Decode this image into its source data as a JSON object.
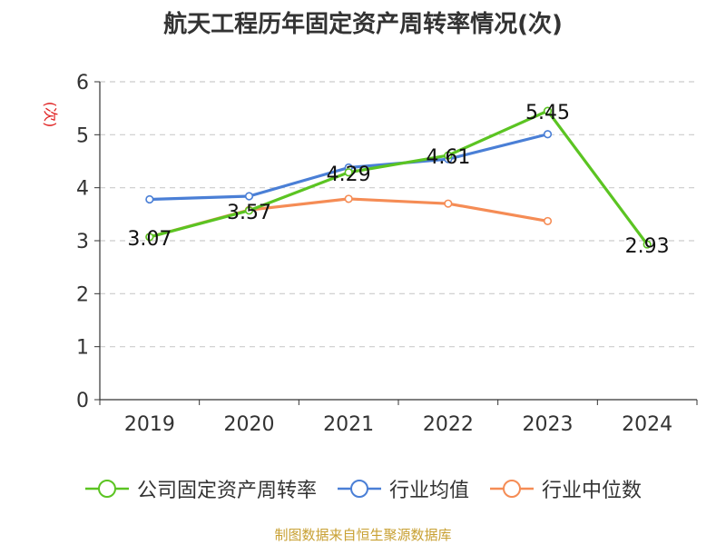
{
  "chart_data": {
    "type": "line",
    "title": "航天工程历年固定资产周转率情况(次)",
    "ylabel": "(次)",
    "ylim": [
      0,
      6
    ],
    "yticks": [
      0,
      1,
      2,
      3,
      4,
      5,
      6
    ],
    "categories": [
      "2019",
      "2020",
      "2021",
      "2022",
      "2023",
      "2024"
    ],
    "grid": true,
    "legend_position": "bottom",
    "series": [
      {
        "name": "公司固定资产周转率",
        "color": "#5bc422",
        "values": [
          3.07,
          3.57,
          4.29,
          4.61,
          5.45,
          2.93
        ],
        "labels": [
          "3.07",
          "3.57",
          "4.29",
          "4.61",
          "5.45",
          "2.93"
        ]
      },
      {
        "name": "行业均值",
        "color": "#4a7fd6",
        "values": [
          3.78,
          3.84,
          4.38,
          4.54,
          5.01,
          null
        ]
      },
      {
        "name": "行业中位数",
        "color": "#f58c55",
        "values": [
          3.07,
          3.58,
          3.79,
          3.7,
          3.37,
          null
        ]
      }
    ]
  },
  "footer": {
    "source": "制图数据来自恒生聚源数据库",
    "source_color": "#c8a032"
  },
  "colors": {
    "axis": "#333333",
    "grid": "#cccccc",
    "ylabel": "#e02020"
  }
}
